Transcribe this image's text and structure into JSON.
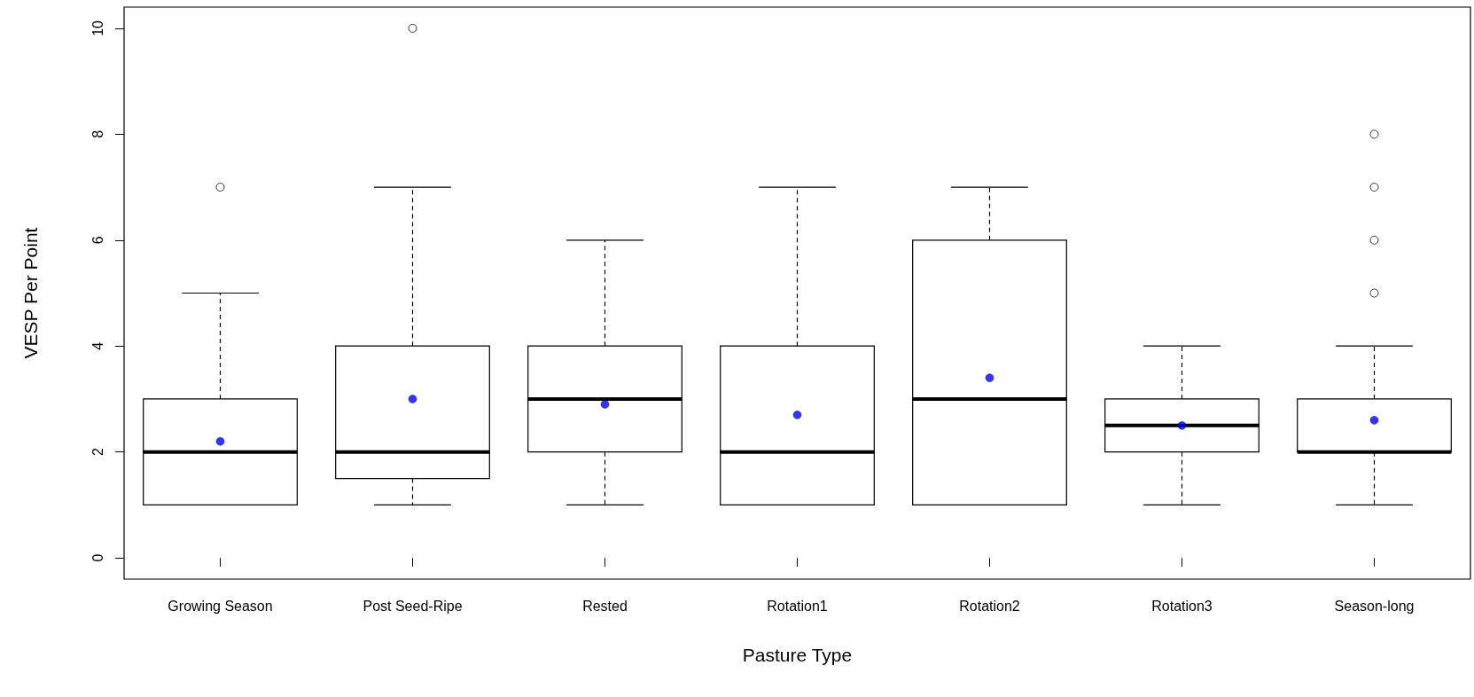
{
  "chart_data": {
    "type": "box",
    "xlabel": "Pasture Type",
    "ylabel": "VESP Per Point",
    "categories": [
      "Growing Season",
      "Post Seed-Ripe",
      "Rested",
      "Rotation1",
      "Rotation2",
      "Rotation3",
      "Season-long"
    ],
    "boxes": [
      {
        "low": 1,
        "q1": 1,
        "median": 2,
        "q3": 3,
        "high": 5,
        "mean": 2.2,
        "outliers": [
          7
        ]
      },
      {
        "low": 1,
        "q1": 1.5,
        "median": 2,
        "q3": 4,
        "high": 7,
        "mean": 3.0,
        "outliers": [
          10
        ]
      },
      {
        "low": 1,
        "q1": 2,
        "median": 3,
        "q3": 4,
        "high": 6,
        "mean": 2.9
      },
      {
        "low": 1,
        "q1": 1,
        "median": 2,
        "q3": 4,
        "high": 7,
        "mean": 2.7
      },
      {
        "low": 1,
        "q1": 1,
        "median": 3,
        "q3": 6,
        "high": 7,
        "mean": 3.4
      },
      {
        "low": 1,
        "q1": 2,
        "median": 2.5,
        "q3": 3,
        "high": 4,
        "mean": 2.5
      },
      {
        "low": 1,
        "q1": 2,
        "median": 2,
        "q3": 3,
        "high": 4,
        "mean": 2.6,
        "outliers": [
          5,
          6,
          7,
          8
        ]
      }
    ],
    "color": "#000000",
    "ylim": [
      -0.4,
      10.4
    ],
    "yticks": [
      0,
      2,
      4,
      6,
      8,
      10
    ],
    "grid": false
  }
}
